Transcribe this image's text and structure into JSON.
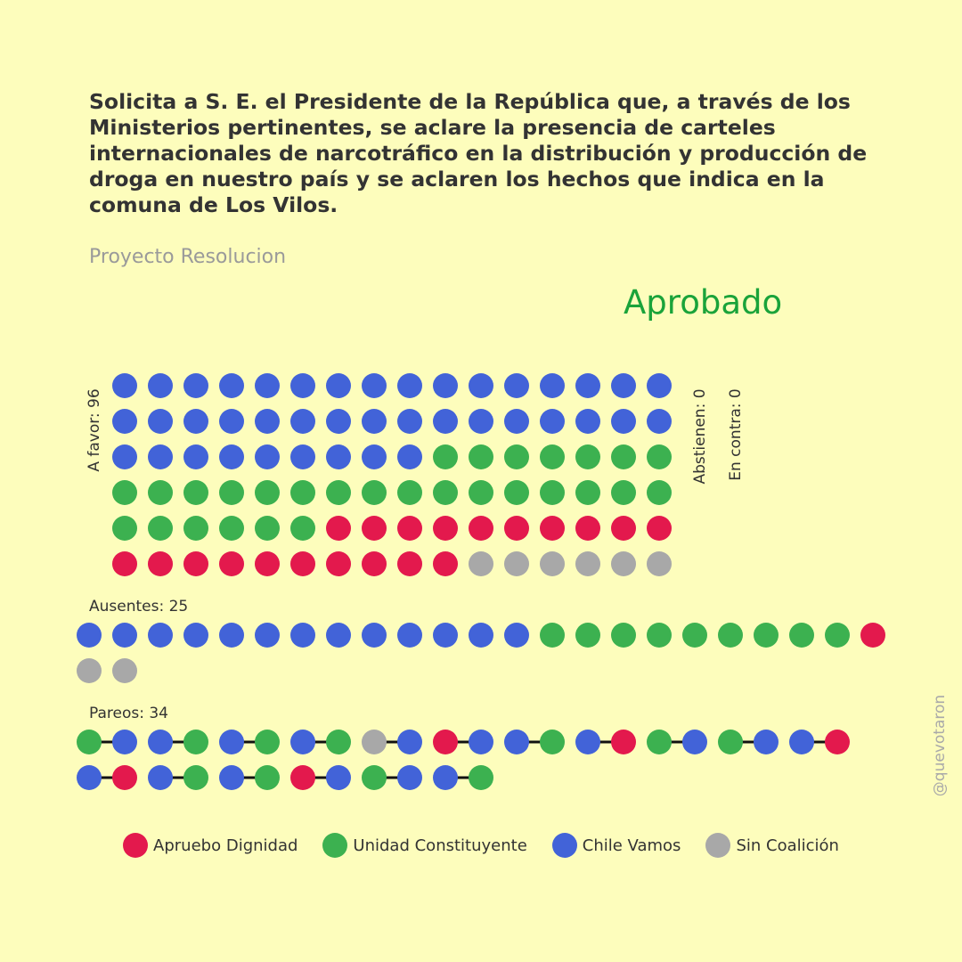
{
  "title": "Solicita a S. E. el Presidente de la República que, a través de los Ministerios pertinentes, se aclare la presencia de carteles internacionales de narcotráfico en la distribución y producción de droga en nuestro país y se aclaren los hechos que indica en la comuna de Los Vilos.",
  "subtitle": "Proyecto Resolucion",
  "status": "Aprobado",
  "signature": "@quevotaron",
  "colors": {
    "apruebo": "#e3194d",
    "unidad": "#3cb150",
    "chile": "#4263d8",
    "sin": "#a8a8a8",
    "status": "#1aa33a",
    "background": "#fdfdbc"
  },
  "legend": [
    {
      "key": "apruebo",
      "label": "Apruebo Dignidad"
    },
    {
      "key": "unidad",
      "label": "Unidad Constituyente"
    },
    {
      "key": "chile",
      "label": "Chile Vamos"
    },
    {
      "key": "sin",
      "label": "Sin Coalición"
    }
  ],
  "chart_data": {
    "type": "dot-matrix",
    "a_favor": {
      "label": "A favor: 96",
      "count": 96,
      "composition": {
        "chile": 41,
        "unidad": 29,
        "apruebo": 20,
        "sin": 6
      }
    },
    "abstienen": {
      "label": "Abstienen: 0",
      "count": 0
    },
    "en_contra": {
      "label": "En contra: 0",
      "count": 0
    },
    "ausentes": {
      "label": "Ausentes: 25",
      "count": 25,
      "composition": {
        "chile": 13,
        "unidad": 9,
        "apruebo": 1,
        "sin": 2
      }
    },
    "pareos": {
      "label": "Pareos: 34",
      "count": 34,
      "pairs": [
        [
          "unidad",
          "chile"
        ],
        [
          "chile",
          "unidad"
        ],
        [
          "chile",
          "unidad"
        ],
        [
          "chile",
          "unidad"
        ],
        [
          "sin",
          "chile"
        ],
        [
          "apruebo",
          "chile"
        ],
        [
          "chile",
          "unidad"
        ],
        [
          "chile",
          "apruebo"
        ],
        [
          "unidad",
          "chile"
        ],
        [
          "unidad",
          "chile"
        ],
        [
          "chile",
          "apruebo"
        ],
        [
          "chile",
          "apruebo"
        ],
        [
          "chile",
          "unidad"
        ],
        [
          "chile",
          "unidad"
        ],
        [
          "apruebo",
          "chile"
        ],
        [
          "unidad",
          "chile"
        ],
        [
          "chile",
          "unidad"
        ]
      ]
    }
  }
}
